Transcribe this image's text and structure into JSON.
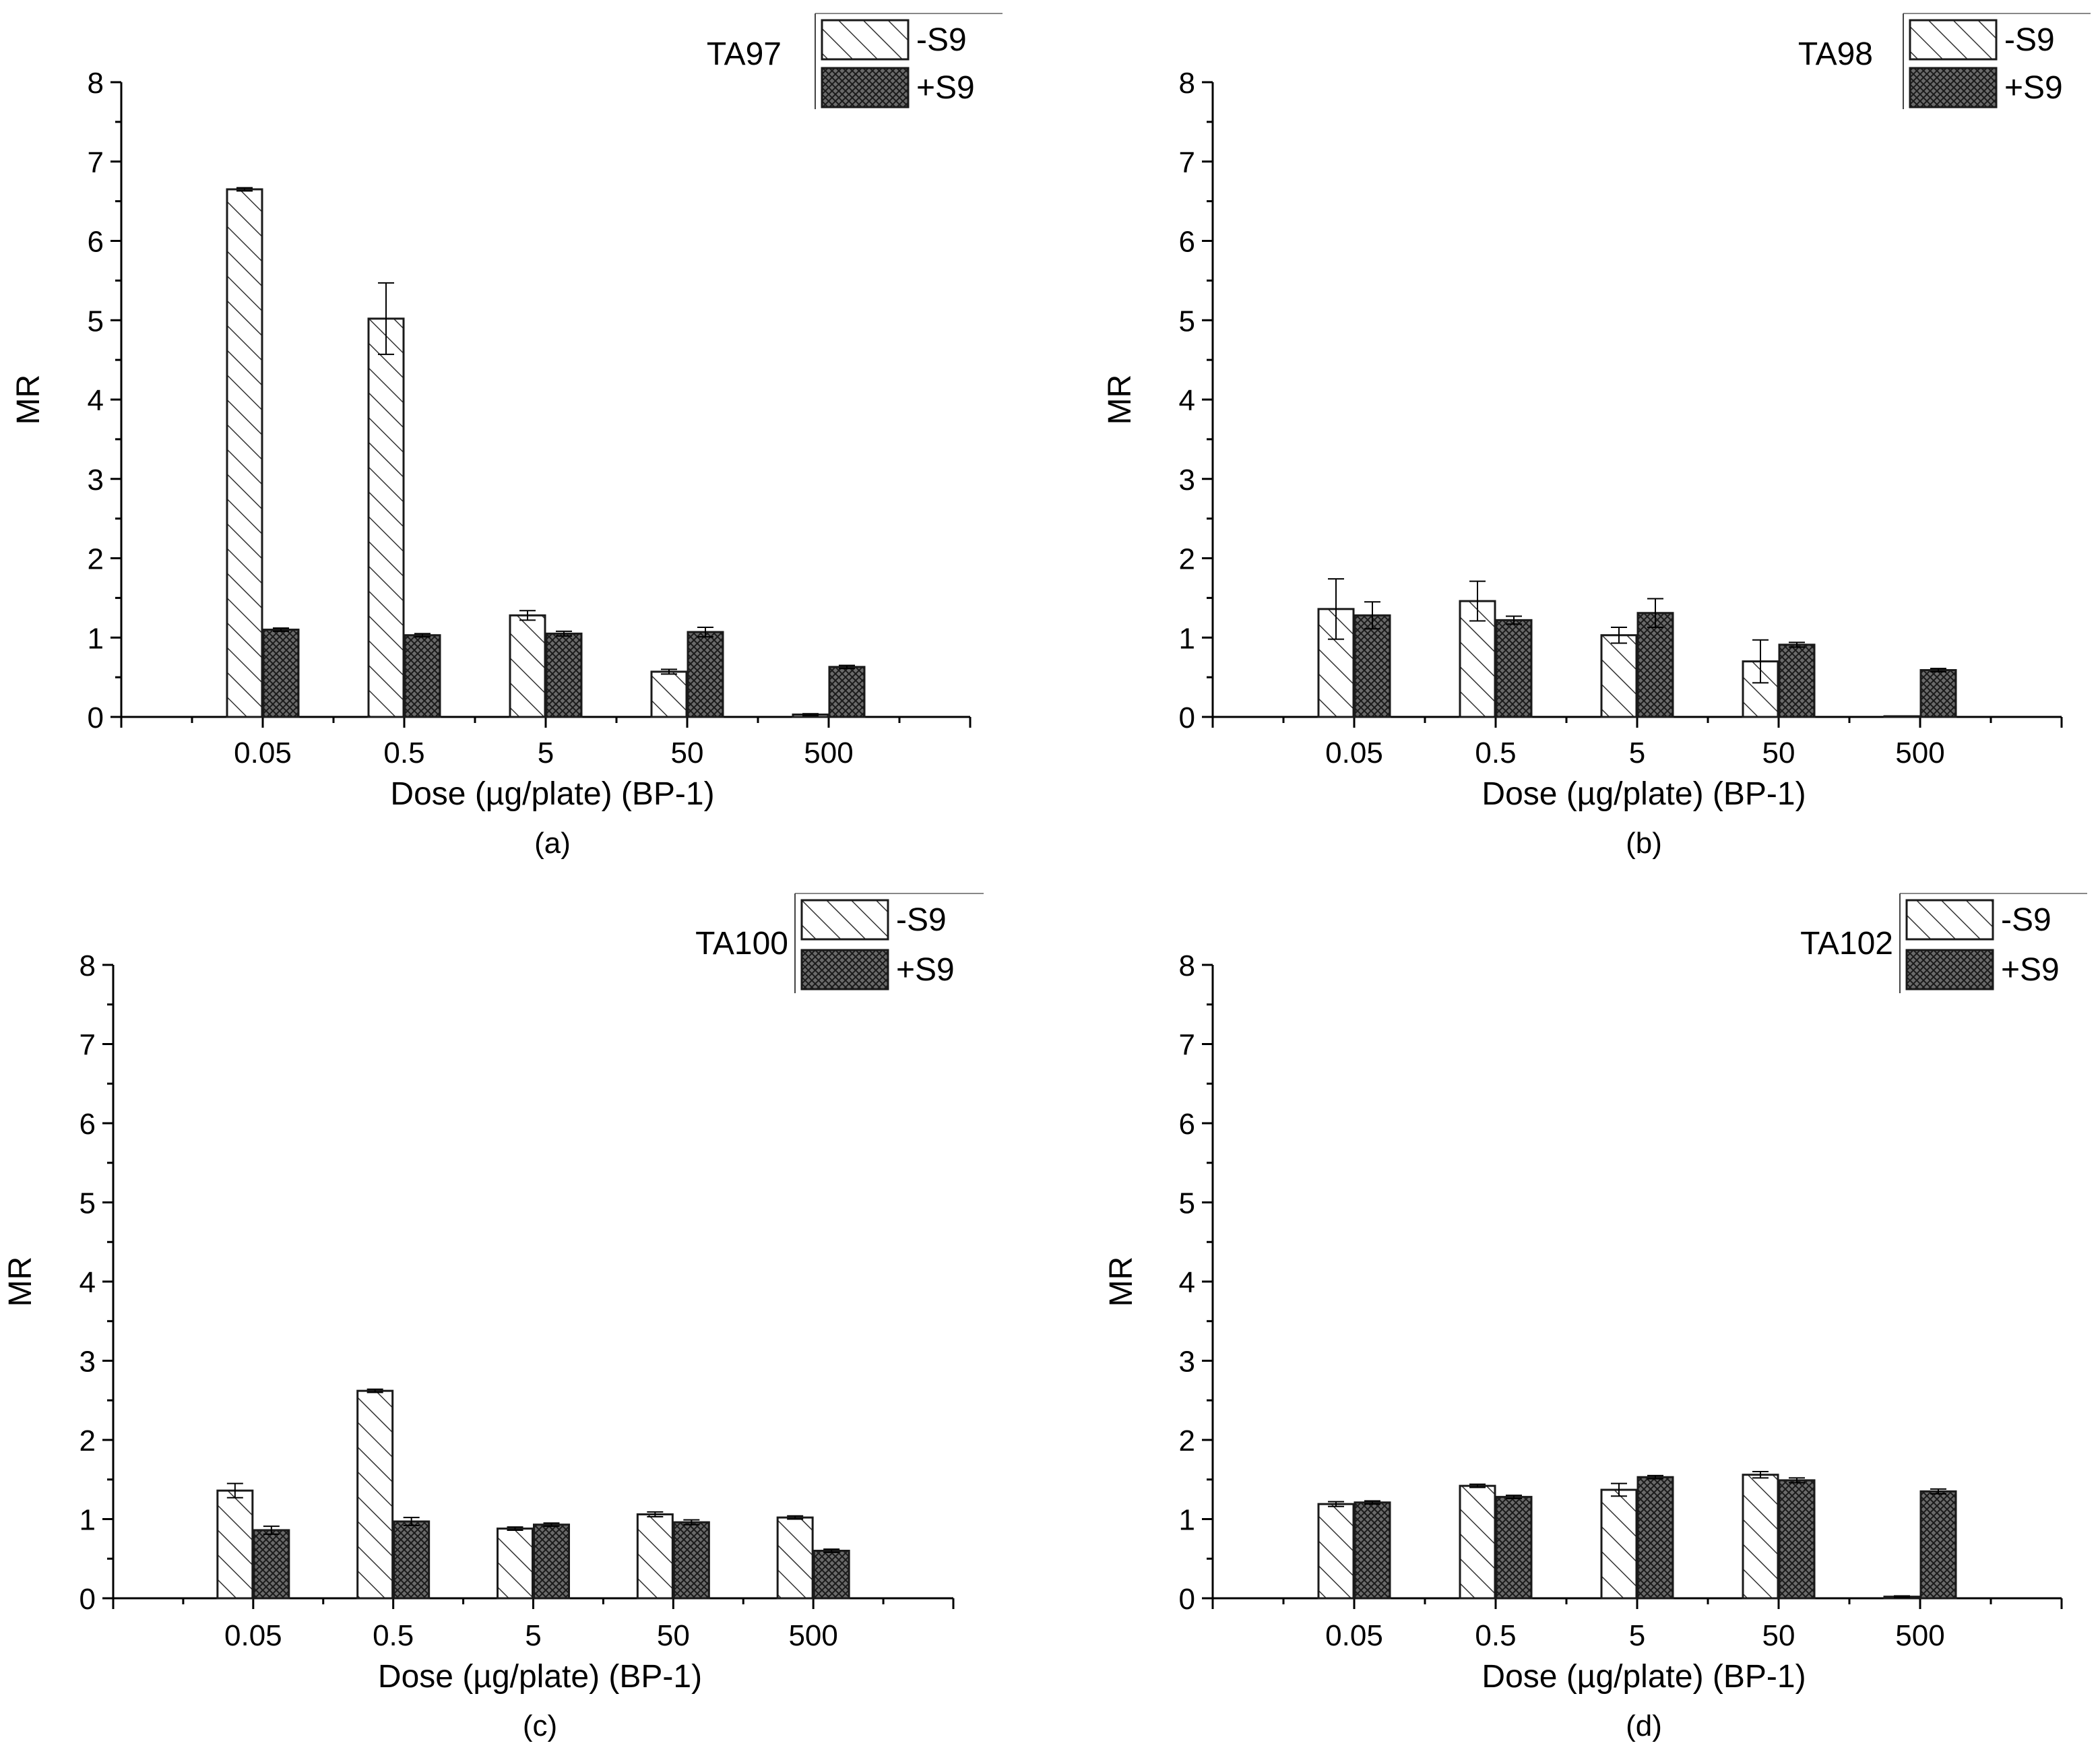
{
  "chart_data": [
    {
      "type": "bar",
      "panel": "(a)",
      "strain": "TA97",
      "categories": [
        "0.05",
        "0.5",
        "5",
        "50",
        "500"
      ],
      "series": [
        {
          "name": "-S9",
          "values": [
            6.65,
            5.02,
            1.28,
            0.57,
            0.03
          ],
          "errors": [
            0.02,
            0.45,
            0.06,
            0.03,
            0.01
          ]
        },
        {
          "name": "+S9",
          "values": [
            1.1,
            1.03,
            1.05,
            1.07,
            0.63
          ],
          "errors": [
            0.02,
            0.02,
            0.03,
            0.06,
            0.02
          ]
        }
      ],
      "xlabel": "Dose (µg/plate) (BP-1)",
      "ylabel": "MR",
      "ylim": [
        0,
        8
      ],
      "yticks": [
        "0",
        "1",
        "2",
        "3",
        "4",
        "5",
        "6",
        "7",
        "8"
      ],
      "legend_position": "top-right"
    },
    {
      "type": "bar",
      "panel": "(b)",
      "strain": "TA98",
      "categories": [
        "0.05",
        "0.5",
        "5",
        "50",
        "500"
      ],
      "series": [
        {
          "name": "-S9",
          "values": [
            1.36,
            1.46,
            1.03,
            0.7,
            0.0
          ],
          "errors": [
            0.38,
            0.25,
            0.1,
            0.27,
            0.0
          ]
        },
        {
          "name": "+S9",
          "values": [
            1.28,
            1.22,
            1.31,
            0.91,
            0.59
          ],
          "errors": [
            0.17,
            0.05,
            0.18,
            0.03,
            0.02
          ]
        }
      ],
      "xlabel": "Dose (µg/plate) (BP-1)",
      "ylabel": "MR",
      "ylim": [
        0,
        8
      ],
      "yticks": [
        "0",
        "1",
        "2",
        "3",
        "4",
        "5",
        "6",
        "7",
        "8"
      ],
      "legend_position": "top-right"
    },
    {
      "type": "bar",
      "panel": "(c)",
      "strain": "TA100",
      "categories": [
        "0.05",
        "0.5",
        "5",
        "50",
        "500"
      ],
      "series": [
        {
          "name": "-S9",
          "values": [
            1.36,
            2.62,
            0.88,
            1.06,
            1.02
          ],
          "errors": [
            0.09,
            0.02,
            0.02,
            0.03,
            0.02
          ]
        },
        {
          "name": "+S9",
          "values": [
            0.86,
            0.97,
            0.93,
            0.96,
            0.6
          ],
          "errors": [
            0.05,
            0.05,
            0.02,
            0.03,
            0.02
          ]
        }
      ],
      "xlabel": "Dose (µg/plate) (BP-1)",
      "ylabel": "MR",
      "ylim": [
        0,
        8
      ],
      "yticks": [
        "0",
        "1",
        "2",
        "3",
        "4",
        "5",
        "6",
        "7",
        "8"
      ],
      "legend_position": "top-right"
    },
    {
      "type": "bar",
      "panel": "(d)",
      "strain": "TA102",
      "categories": [
        "0.05",
        "0.5",
        "5",
        "50",
        "500"
      ],
      "series": [
        {
          "name": "-S9",
          "values": [
            1.19,
            1.42,
            1.37,
            1.56,
            0.02
          ],
          "errors": [
            0.03,
            0.02,
            0.08,
            0.04,
            0.01
          ]
        },
        {
          "name": "+S9",
          "values": [
            1.21,
            1.28,
            1.53,
            1.49,
            1.35
          ],
          "errors": [
            0.02,
            0.02,
            0.02,
            0.03,
            0.03
          ]
        }
      ],
      "xlabel": "Dose (µg/plate) (BP-1)",
      "ylabel": "MR",
      "ylim": [
        0,
        8
      ],
      "yticks": [
        "0",
        "1",
        "2",
        "3",
        "4",
        "5",
        "6",
        "7",
        "8"
      ],
      "legend_position": "top-right"
    }
  ],
  "colors": {
    "axis": "#000000",
    "bar_stroke": "#1a1a1a",
    "hatch": "#333333",
    "background": "#ffffff"
  }
}
